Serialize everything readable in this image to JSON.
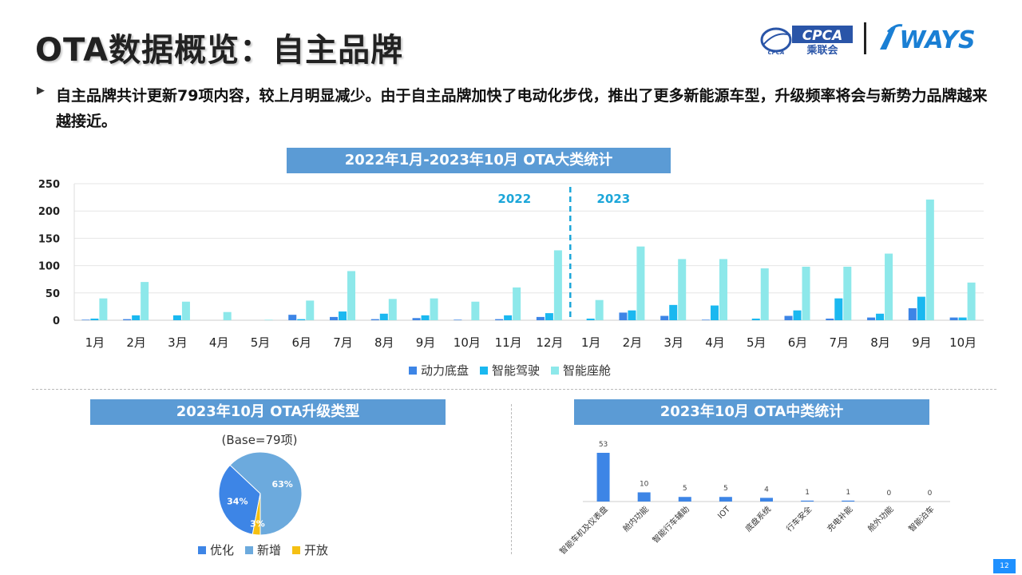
{
  "title": "OTA数据概览：自主品牌",
  "logos": {
    "cpca_text": "CPCA",
    "cpca_sub": "乘联会",
    "cpca_small": "CPCA",
    "ways_text": "WAYS"
  },
  "summary": "自主品牌共计更新79项内容，较上月明显减少。由于自主品牌加快了电动化步伐，推出了更多新能源车型，升级频率将会与新势力品牌越来越接近。",
  "bullet": "▶",
  "page_number": "12",
  "colors": {
    "banner": "#5b9bd5",
    "series1": "#3d85e6",
    "series2": "#1ab8f0",
    "series3": "#8de8ea",
    "divider": "#1ba6d9",
    "pie_opt": "#3d85e6",
    "pie_new": "#6caadd",
    "pie_open": "#f5c013"
  },
  "chart_data": [
    {
      "type": "bar",
      "title": "2022年1月-2023年10月 OTA大类统计",
      "categories": [
        "1月",
        "2月",
        "3月",
        "4月",
        "5月",
        "6月",
        "7月",
        "8月",
        "9月",
        "10月",
        "11月",
        "12月",
        "1月",
        "2月",
        "3月",
        "4月",
        "5月",
        "6月",
        "7月",
        "8月",
        "9月",
        "10月"
      ],
      "series": [
        {
          "name": "动力底盘",
          "values": [
            1,
            2,
            0,
            0,
            0,
            10,
            6,
            2,
            4,
            1,
            2,
            6,
            0,
            14,
            8,
            1,
            0,
            8,
            3,
            5,
            22,
            5
          ]
        },
        {
          "name": "智能驾驶",
          "values": [
            3,
            9,
            9,
            0,
            0,
            2,
            16,
            12,
            9,
            0,
            9,
            13,
            3,
            18,
            28,
            27,
            3,
            18,
            40,
            12,
            43,
            5
          ]
        },
        {
          "name": "智能座舱",
          "values": [
            40,
            70,
            34,
            15,
            1,
            36,
            90,
            39,
            40,
            34,
            60,
            128,
            37,
            135,
            112,
            112,
            95,
            98,
            98,
            122,
            221,
            69
          ]
        }
      ],
      "ylim": [
        0,
        250
      ],
      "yticks": [
        "0",
        "50",
        "100",
        "150",
        "200",
        "250"
      ],
      "year_labels": [
        "2022",
        "2023"
      ],
      "legend_position": "bottom"
    },
    {
      "type": "pie",
      "title": "2023年10月 OTA升级类型",
      "subtitle": "(Base=79项)",
      "labels": [
        "优化",
        "新增",
        "开放"
      ],
      "values": [
        34,
        63,
        3
      ],
      "value_labels": [
        "34%",
        "63%",
        "3%"
      ],
      "legend_position": "bottom"
    },
    {
      "type": "bar",
      "title": "2023年10月 OTA中类统计",
      "categories": [
        "智能车机及仪表盘",
        "舱内功能",
        "智能行车辅助",
        "IOT",
        "底盘系统",
        "行车安全",
        "充电补能",
        "舱外功能",
        "智能泊车"
      ],
      "values": [
        53,
        10,
        5,
        5,
        4,
        1,
        1,
        0,
        0
      ],
      "value_labels": [
        "53",
        "10",
        "5",
        "5",
        "4",
        "1",
        "1",
        "0",
        "0"
      ]
    }
  ]
}
